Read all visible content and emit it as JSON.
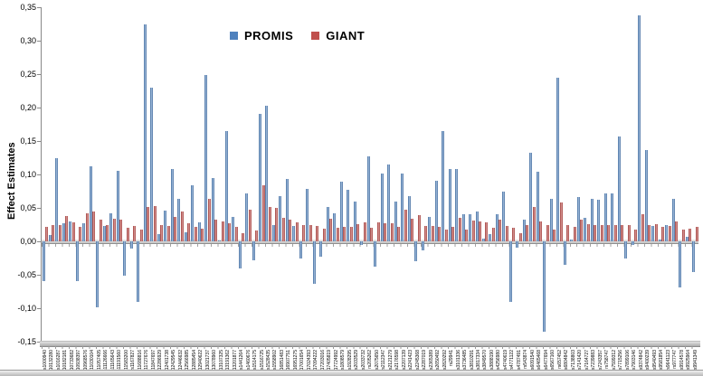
{
  "legend": {
    "series1": "PROMIS",
    "series2": "GIANT"
  },
  "colors": {
    "promis_blue": "#4F81BD",
    "giant_red": "#C0504D",
    "axis_gray": "#898989"
  },
  "y_axis": {
    "title": "Effect Estimates",
    "tick_labels": [
      "0,35",
      "0,30",
      "0,25",
      "0,20",
      "0,15",
      "0,10",
      "0,05",
      "0,00",
      "-0,05",
      "-0,10",
      "-0,15"
    ],
    "tick_values": [
      0.35,
      0.3,
      0.25,
      0.2,
      0.15,
      0.1,
      0.05,
      0.0,
      -0.05,
      -0.1,
      -0.15
    ]
  },
  "chart_data": {
    "type": "bar",
    "title": "",
    "xlabel": "",
    "ylabel": "Effect Estimates",
    "ylim": [
      -0.15,
      0.35
    ],
    "grid": false,
    "legend_position": "top-center",
    "decimal_separator": ",",
    "categories": [
      "rs1000940",
      "rs10132280",
      "rs1016287",
      "rs10182181",
      "rs10733682",
      "rs10938397",
      "rs10968576",
      "rs11030104",
      "rs11057405",
      "rs11126666",
      "rs11165643",
      "rs11191560",
      "rs11583200",
      "rs1167827",
      "rs11688816",
      "rs11727676",
      "rs11847697",
      "rs12286929",
      "rs12401738",
      "rs12429545",
      "rs12446632",
      "rs12566985",
      "rs12885454",
      "rs12940622",
      "rs13021737",
      "rs13078960",
      "rs13107325",
      "rs13191362",
      "rs13201877",
      "rs1441264",
      "rs1460676",
      "rs1514175",
      "rs1516725",
      "rs1528435",
      "rs1558902",
      "rs16851483",
      "rs16907751",
      "rs16951275",
      "rs17001654",
      "rs17024393",
      "rs17094222",
      "rs17203016",
      "rs17405819",
      "rs17724992",
      "rs1808579",
      "rs1928295",
      "rs2033529",
      "rs2033732",
      "rs205262",
      "rs2075650",
      "rs2112347",
      "rs2121279",
      "rs2176598",
      "rs2207139",
      "rs2241423",
      "rs2245368",
      "rs2287019",
      "rs2365389",
      "rs2650492",
      "rs2820292",
      "rs29941",
      "rs3101336",
      "rs3736485",
      "rs3810291",
      "rs3817334",
      "rs3849570",
      "rs3888190",
      "rs4256980",
      "rs4740619",
      "rs4771122",
      "rs4787491",
      "rs543874",
      "rs6091540",
      "rs6465468",
      "rs6477694",
      "rs6567160",
      "rs657452",
      "rs6804842",
      "rs7138803",
      "rs7141420",
      "rs7164727",
      "rs7239883",
      "rs7243357",
      "rs758747",
      "rs7599312",
      "rs7715256",
      "rs7899106",
      "rs7903146",
      "rs9374842",
      "rs9400239",
      "rs9540493",
      "rs9581854",
      "rs9641123",
      "rs977747",
      "rs9914578",
      "rs9925964",
      "rs9941349"
    ],
    "series": [
      {
        "name": "PROMIS",
        "color": "#4F81BD",
        "values": [
          -0.06,
          0.01,
          0.124,
          0.027,
          0.03,
          -0.06,
          0.027,
          0.112,
          -0.099,
          0.023,
          0.042,
          0.106,
          -0.051,
          -0.011,
          -0.09,
          0.325,
          0.23,
          0.011,
          0.046,
          0.108,
          0.064,
          0.013,
          0.084,
          0.029,
          0.248,
          0.094,
          0.002,
          0.165,
          0.036,
          -0.04,
          0.071,
          -0.028,
          0.191,
          0.203,
          0.024,
          0.067,
          0.093,
          0.023,
          -0.025,
          0.078,
          -0.063,
          -0.023,
          0.051,
          0.042,
          0.089,
          0.077,
          0.059,
          -0.006,
          0.127,
          -0.038,
          0.101,
          0.115,
          0.06,
          0.102,
          0.068,
          -0.03,
          -0.014,
          0.036,
          0.09,
          0.165,
          0.108,
          0.108,
          0.04,
          0.041,
          0.045,
          0.004,
          0.011,
          0.041,
          0.075,
          -0.091,
          -0.01,
          0.032,
          0.133,
          0.104,
          -0.135,
          0.064,
          0.245,
          -0.035,
          0.003,
          0.066,
          0.035,
          0.063,
          0.062,
          0.072,
          0.072,
          0.157,
          -0.026,
          -0.006,
          0.338,
          0.136,
          0.023,
          0.003,
          0.025,
          0.064,
          -0.069,
          0.007,
          -0.046
        ]
      },
      {
        "name": "GIANT",
        "color": "#C0504D",
        "values": [
          0.021,
          0.024,
          0.025,
          0.038,
          0.029,
          0.021,
          0.042,
          0.045,
          0.032,
          0.024,
          0.034,
          0.033,
          0.02,
          0.023,
          0.018,
          0.052,
          0.053,
          0.025,
          0.023,
          0.036,
          0.044,
          0.027,
          0.021,
          0.019,
          0.063,
          0.032,
          0.03,
          0.027,
          0.021,
          0.012,
          0.047,
          0.016,
          0.084,
          0.051,
          0.05,
          0.035,
          0.033,
          0.029,
          0.024,
          0.025,
          0.023,
          0.019,
          0.034,
          0.02,
          0.021,
          0.022,
          0.026,
          0.028,
          0.02,
          0.028,
          0.027,
          0.027,
          0.022,
          0.047,
          0.034,
          0.039,
          0.023,
          0.023,
          0.021,
          0.017,
          0.021,
          0.035,
          0.018,
          0.031,
          0.03,
          0.029,
          0.02,
          0.032,
          0.023,
          0.02,
          0.012,
          0.024,
          0.051,
          0.03,
          0.025,
          0.018,
          0.058,
          0.024,
          0.021,
          0.033,
          0.026,
          0.024,
          0.025,
          0.025,
          0.024,
          0.025,
          0.024,
          0.018,
          0.041,
          0.025,
          0.026,
          0.021,
          0.023,
          0.03,
          0.018,
          0.019,
          0.022
        ]
      }
    ]
  }
}
